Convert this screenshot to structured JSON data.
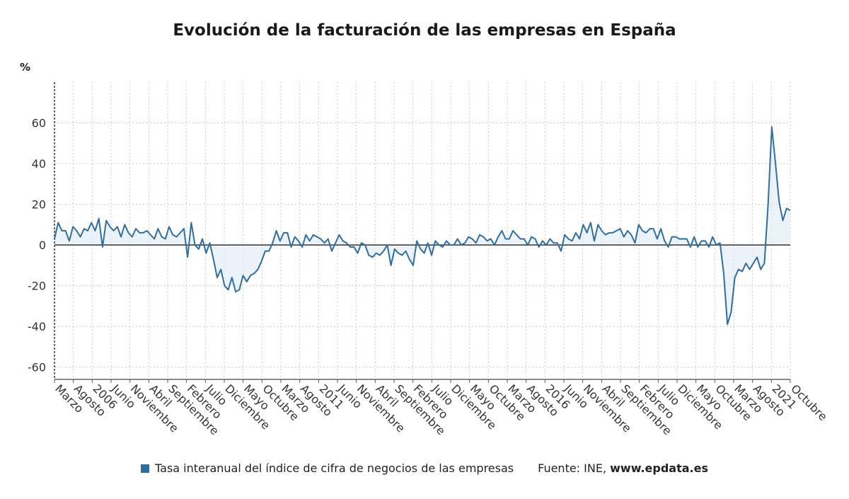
{
  "chart_data": {
    "type": "line",
    "title": "Evolución de la facturación de las empresas en España",
    "y_unit": "%",
    "ylim": [
      -66,
      80
    ],
    "y_ticks": [
      60,
      40,
      20,
      0,
      -20,
      -40,
      -60
    ],
    "grid": true,
    "x_tick_labels": [
      "Marzo",
      "Agosto",
      "2006",
      "Junio",
      "Noviembre",
      "Abril",
      "Septiembre",
      "Febrero",
      "Julio",
      "Diciembre",
      "Mayo",
      "Octubre",
      "Marzo",
      "Agosto",
      "2011",
      "Junio",
      "Noviembre",
      "Abril",
      "Septiembre",
      "Febrero",
      "Julio",
      "Diciembre",
      "Mayo",
      "Octubre",
      "Marzo",
      "Agosto",
      "2016",
      "Junio",
      "Noviembre",
      "Abril",
      "Septiembre",
      "Febrero",
      "Julio",
      "Diciembre",
      "Mayo",
      "Octubre",
      "Marzo",
      "Agosto",
      "2021",
      "Octubre"
    ],
    "series": [
      {
        "name": "Tasa interanual del índice de cifra de negocios de las empresas",
        "color": "#2f6e9e",
        "values": [
          3,
          11,
          7,
          7,
          2,
          9,
          7,
          4,
          8,
          7,
          11,
          7,
          13,
          -1,
          12,
          9,
          7,
          9,
          4,
          10,
          6,
          4,
          8,
          6,
          6,
          7,
          5,
          3,
          8,
          4,
          3,
          9,
          5,
          4,
          6,
          8,
          -6,
          11,
          0,
          -2,
          3,
          -4,
          1,
          -7,
          -16,
          -12,
          -20,
          -22,
          -16,
          -23,
          -22,
          -15,
          -18,
          -15,
          -14,
          -12,
          -8,
          -3,
          -3,
          1,
          7,
          2,
          6,
          6,
          -1,
          4,
          2,
          -1,
          5,
          2,
          5,
          4,
          3,
          1,
          3,
          -3,
          1,
          5,
          2,
          1,
          -1,
          -1,
          -4,
          1,
          0,
          -5,
          -6,
          -4,
          -5,
          -3,
          0,
          -10,
          -2,
          -4,
          -5,
          -3,
          -7,
          -10,
          2,
          -2,
          -4,
          1,
          -5,
          2,
          0,
          -1,
          2,
          0,
          0,
          3,
          0,
          1,
          4,
          3,
          1,
          5,
          4,
          2,
          3,
          0,
          4,
          7,
          3,
          3,
          7,
          5,
          3,
          3,
          0,
          4,
          3,
          -1,
          2,
          0,
          3,
          1,
          1,
          -3,
          5,
          3,
          2,
          6,
          3,
          10,
          6,
          11,
          2,
          10,
          7,
          5,
          6,
          6,
          7,
          8,
          4,
          7,
          5,
          1,
          10,
          7,
          6,
          8,
          8,
          3,
          8,
          2,
          -1,
          4,
          4,
          3,
          3,
          3,
          -1,
          4,
          -1,
          2,
          2,
          -1,
          4,
          0,
          1,
          -14,
          -39,
          -33,
          -16,
          -12,
          -13,
          -9,
          -12,
          -9,
          -6,
          -12,
          -9,
          20,
          58,
          40,
          21,
          12,
          18,
          17
        ]
      }
    ],
    "legend": {
      "placement": "bottom",
      "entries": [
        "Tasa interanual del índice de cifra de negocios de las empresas"
      ]
    },
    "source": {
      "label": "Fuente: INE, ",
      "site": "www.epdata.es"
    }
  }
}
